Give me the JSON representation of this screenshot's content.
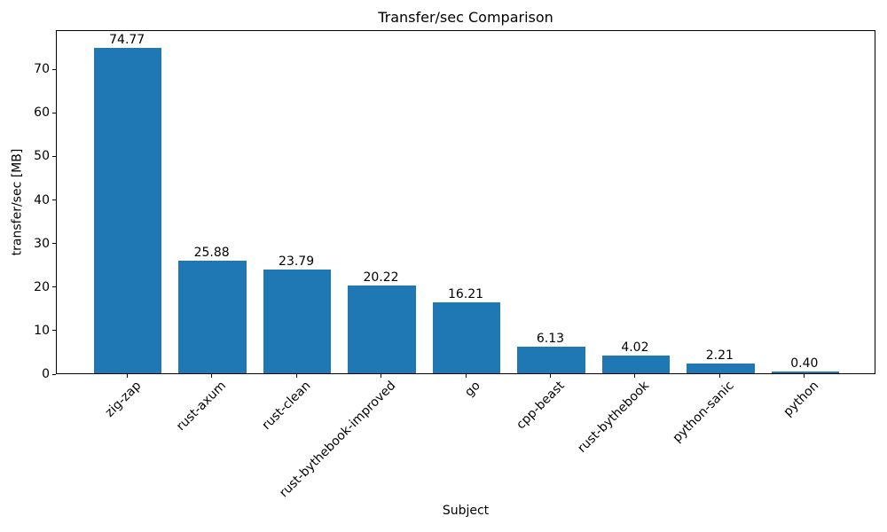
{
  "chart_data": {
    "type": "bar",
    "title": "Transfer/sec Comparison",
    "xlabel": "Subject",
    "ylabel": "transfer/sec [MB]",
    "categories": [
      "zig-zap",
      "rust-axum",
      "rust-clean",
      "rust-bythebook-improved",
      "go",
      "cpp-beast",
      "rust-bythebook",
      "python-sanic",
      "python"
    ],
    "values": [
      74.77,
      25.88,
      23.79,
      20.22,
      16.21,
      6.13,
      4.02,
      2.21,
      0.4
    ],
    "value_labels": [
      "74.77",
      "25.88",
      "23.79",
      "20.22",
      "16.21",
      "6.13",
      "4.02",
      "2.21",
      "0.40"
    ],
    "yticks": [
      0,
      10,
      20,
      30,
      40,
      50,
      60,
      70
    ],
    "ylim": [
      0,
      79
    ],
    "bar_color": "#1f77b4",
    "grid": false,
    "legend_position": "none",
    "xtick_rotation_deg": 45
  }
}
